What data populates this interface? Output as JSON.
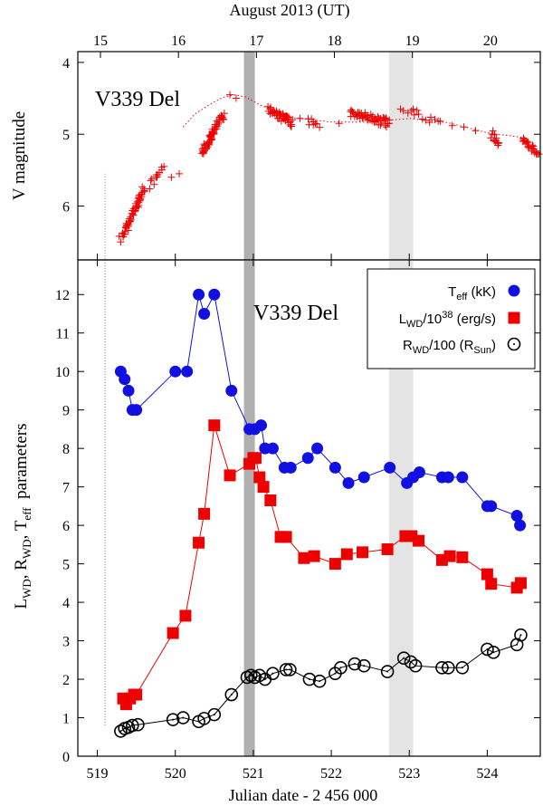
{
  "chart_data": [
    {
      "type": "scatter",
      "title": "August 2013 (UT)",
      "label": "V339 Del",
      "ylabel": "V magnitude",
      "x_top_ticks": [
        15,
        16,
        17,
        18,
        19,
        20
      ],
      "x_top_offset": 504.04,
      "xlim": [
        518.75,
        524.68
      ],
      "ylim": [
        6.75,
        3.85
      ],
      "yticks": [
        4,
        5,
        6
      ],
      "colors": {
        "points": "#ee0000",
        "fit": "#ee0000",
        "band_dark": "#b0b0b0",
        "band_light": "#e4e4e4"
      },
      "bands": [
        [
          520.88,
          521.02
        ],
        [
          522.74,
          523.05
        ]
      ],
      "start_line_x": 519.1,
      "fit_curve": {
        "x": [
          520.1,
          520.25,
          520.45,
          520.6,
          520.75,
          520.9,
          521.1,
          521.5,
          522.0,
          522.5,
          523.0,
          523.5,
          524.0,
          524.5
        ],
        "y": [
          4.9,
          4.72,
          4.58,
          4.49,
          4.45,
          4.48,
          4.6,
          4.77,
          4.83,
          4.83,
          4.78,
          4.84,
          4.98,
          5.05
        ]
      },
      "clusters": [
        {
          "x0": 519.33,
          "x1": 519.6,
          "y0": 6.42,
          "y1": 5.75,
          "n": 55
        },
        {
          "x0": 519.68,
          "x1": 519.85,
          "y0": 5.72,
          "y1": 5.5,
          "n": 12
        },
        {
          "x0": 520.35,
          "x1": 520.5,
          "y0": 5.25,
          "y1": 4.95,
          "n": 40
        },
        {
          "x0": 520.5,
          "x1": 520.62,
          "y0": 4.95,
          "y1": 4.72,
          "n": 22
        },
        {
          "x0": 521.2,
          "x1": 521.5,
          "y0": 4.65,
          "y1": 4.85,
          "n": 45
        },
        {
          "x0": 521.7,
          "x1": 521.85,
          "y0": 4.8,
          "y1": 4.9,
          "n": 8
        },
        {
          "x0": 522.25,
          "x1": 522.75,
          "y0": 4.7,
          "y1": 4.85,
          "n": 55
        },
        {
          "x0": 522.9,
          "x1": 523.4,
          "y0": 4.65,
          "y1": 4.85,
          "n": 14
        },
        {
          "x0": 524.05,
          "x1": 524.15,
          "y0": 5.0,
          "y1": 5.12,
          "n": 12
        },
        {
          "x0": 524.45,
          "x1": 524.65,
          "y0": 5.1,
          "y1": 5.25,
          "n": 25
        }
      ],
      "points": [
        [
          519.3,
          6.5
        ],
        [
          519.28,
          6.42
        ],
        [
          519.95,
          5.6
        ],
        [
          520.05,
          5.55
        ],
        [
          520.7,
          4.45
        ],
        [
          520.78,
          4.5
        ],
        [
          521.6,
          4.78
        ],
        [
          522.1,
          4.85
        ],
        [
          523.05,
          4.65
        ],
        [
          523.55,
          4.88
        ],
        [
          523.7,
          4.9
        ],
        [
          523.85,
          4.95
        ]
      ]
    },
    {
      "type": "line",
      "label": "V339 Del",
      "xlabel": "Julian date - 2 456 000",
      "ylabel_parts": {
        "l": "L",
        "wd": "WD",
        "comma": ", ",
        "r": "R",
        "t": "T",
        "eff": "eff",
        "rest": "  parameters"
      },
      "xlim": [
        518.75,
        524.68
      ],
      "ylim": [
        0,
        12.9
      ],
      "xticks": [
        519,
        520,
        521,
        522,
        523,
        524
      ],
      "yticks": [
        0,
        1,
        2,
        3,
        4,
        5,
        6,
        7,
        8,
        9,
        10,
        11,
        12
      ],
      "legend": {
        "position": "top-right",
        "teff": {
          "main": "T",
          "sub": "eff",
          "rest": " (kK)"
        },
        "lwd": {
          "main": "L",
          "sub": "WD",
          "mid": "/10",
          "sup": "38",
          "rest": " (erg/s)"
        },
        "rwd": {
          "main": "R",
          "sub": "WD",
          "mid": "/100 (R",
          "sub2": "Sun",
          "rest": ")"
        }
      },
      "series": [
        {
          "name": "Teff (kK)",
          "color": "#1010e0",
          "marker": "circle-filled",
          "x": [
            519.3,
            519.35,
            519.4,
            519.45,
            519.5,
            520.0,
            520.15,
            520.3,
            520.37,
            520.5,
            520.72,
            520.95,
            521.02,
            521.1,
            521.15,
            521.25,
            521.4,
            521.48,
            521.7,
            521.82,
            522.05,
            522.22,
            522.42,
            522.75,
            522.97,
            523.05,
            523.13,
            523.42,
            523.5,
            523.68,
            524.0,
            524.05,
            524.38,
            524.42
          ],
          "y": [
            10,
            9.8,
            9.5,
            9.0,
            9.0,
            10,
            10,
            12,
            11.5,
            12,
            9.5,
            8.5,
            8.5,
            8.6,
            8.0,
            8.0,
            7.5,
            7.5,
            7.75,
            8.0,
            7.5,
            7.1,
            7.25,
            7.5,
            7.1,
            7.25,
            7.38,
            7.25,
            7.25,
            7.25,
            6.5,
            6.5,
            6.25,
            6.0
          ]
        },
        {
          "name": "LWD/10^38 (erg/s)",
          "color": "#ee0000",
          "marker": "square-filled",
          "x": [
            519.33,
            519.37,
            519.42,
            519.47,
            519.5,
            519.97,
            520.13,
            520.3,
            520.37,
            520.5,
            520.7,
            520.95,
            521.0,
            521.03,
            521.08,
            521.13,
            521.22,
            521.35,
            521.42,
            521.65,
            521.78,
            522.05,
            522.2,
            522.4,
            522.72,
            522.95,
            523.03,
            523.12,
            523.42,
            523.52,
            523.68,
            524.0,
            524.05,
            524.38,
            524.43
          ],
          "y": [
            1.5,
            1.35,
            1.5,
            1.6,
            1.6,
            3.2,
            3.65,
            5.55,
            6.3,
            8.6,
            7.3,
            7.6,
            7.75,
            7.75,
            7.25,
            7.0,
            6.65,
            5.7,
            5.7,
            5.15,
            5.2,
            5.0,
            5.25,
            5.3,
            5.38,
            5.72,
            5.72,
            5.6,
            5.1,
            5.2,
            5.17,
            4.73,
            4.48,
            4.38,
            4.5
          ]
        },
        {
          "name": "RWD/100 (RSun)",
          "color": "#000000",
          "marker": "circle-open",
          "x": [
            519.3,
            519.35,
            519.4,
            519.45,
            519.52,
            519.97,
            520.1,
            520.3,
            520.37,
            520.5,
            520.72,
            520.92,
            520.97,
            521.02,
            521.08,
            521.15,
            521.25,
            521.42,
            521.47,
            521.72,
            521.85,
            522.05,
            522.12,
            522.3,
            522.42,
            522.72,
            522.93,
            523.02,
            523.08,
            523.42,
            523.5,
            523.68,
            524.0,
            524.08,
            524.38,
            524.43
          ],
          "y": [
            0.65,
            0.72,
            0.75,
            0.8,
            0.82,
            0.95,
            1.0,
            0.9,
            0.98,
            1.08,
            1.6,
            2.05,
            2.1,
            2.05,
            2.1,
            2.0,
            2.15,
            2.25,
            2.25,
            2.0,
            1.95,
            2.15,
            2.3,
            2.4,
            2.35,
            2.2,
            2.55,
            2.45,
            2.35,
            2.3,
            2.3,
            2.3,
            2.78,
            2.7,
            2.9,
            3.15
          ]
        }
      ]
    }
  ]
}
